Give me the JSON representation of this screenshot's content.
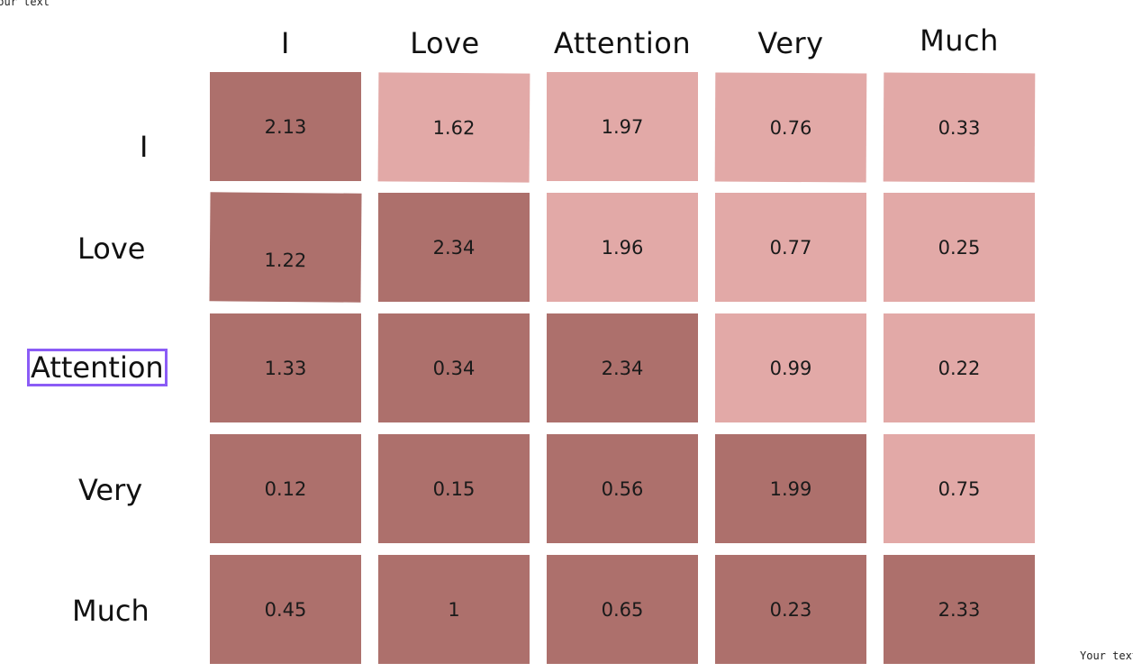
{
  "text_box_top": "Your text",
  "text_box_bottom": "Your text",
  "columns": [
    "I",
    "Love",
    "Attention",
    "Very",
    "Much"
  ],
  "rows": [
    "I",
    "Love",
    "Attention",
    "Very",
    "Much"
  ],
  "selected_row_label": "Attention",
  "colors": {
    "high": "#ad706c",
    "low": "#e2a9a7",
    "selection_outline": "#8b5cf6"
  },
  "matrix": [
    [
      "2.13",
      "1.62",
      "1.97",
      "0.76",
      "0.33"
    ],
    [
      "1.22",
      "2.34",
      "1.96",
      "0.77",
      "0.25"
    ],
    [
      "1.33",
      "0.34",
      "2.34",
      "0.99",
      "0.22"
    ],
    [
      "0.12",
      "0.15",
      "0.56",
      "1.99",
      "0.75"
    ],
    [
      "0.45",
      "1",
      "0.65",
      "0.23",
      "2.33"
    ]
  ],
  "shading": [
    [
      "high",
      "low",
      "low",
      "low",
      "low"
    ],
    [
      "high",
      "high",
      "low",
      "low",
      "low"
    ],
    [
      "high",
      "high",
      "high",
      "low",
      "low"
    ],
    [
      "high",
      "high",
      "high",
      "high",
      "low"
    ],
    [
      "high",
      "high",
      "high",
      "high",
      "high"
    ]
  ]
}
